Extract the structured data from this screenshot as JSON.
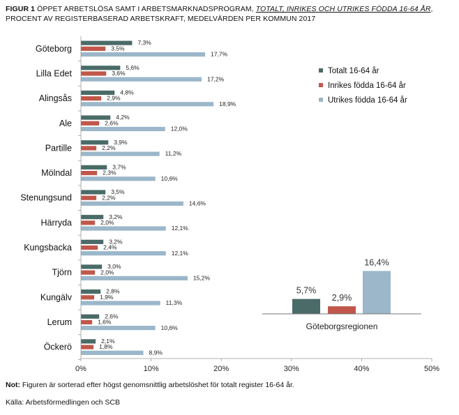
{
  "header": {
    "figure_label": "FIGUR 1",
    "title_plain": " ÖPPET ARBETSLÖSA SAMT I ARBETSMARKNADSPROGRAM, ",
    "title_italic": "TOTALT, INRIKES OCH UTRIKES FÖDDA 16-64 ÅR",
    "title_rest": ", PROCENT AV REGISTERBASERAD ARBETSKRAFT, MEDELVÄRDEN PER KOMMUN 2017"
  },
  "footer": {
    "note_label": "Not:",
    "note_text": " Figuren är sorterad efter högst genomsnittlig arbetslöshet för totalt register 16-64 år.",
    "source": "Källa: Arbetsförmedlingen och SCB"
  },
  "chart_data": [
    {
      "type": "bar",
      "orientation": "horizontal",
      "categories": [
        "Göteborg",
        "Lilla Edet",
        "Alingsås",
        "Ale",
        "Partille",
        "Mölndal",
        "Stenungsund",
        "Härryda",
        "Kungsbacka",
        "Tjörn",
        "Kungälv",
        "Lerum",
        "Öckerö"
      ],
      "series": [
        {
          "name": "Totalt 16-64 år",
          "color": "#4a6b68",
          "values": [
            7.3,
            5.6,
            4.8,
            4.2,
            3.9,
            3.7,
            3.5,
            3.2,
            3.2,
            3.0,
            2.8,
            2.6,
            2.1
          ],
          "labels": [
            "7,3%",
            "5,6%",
            "4,8%",
            "4,2%",
            "3,9%",
            "3,7%",
            "3,5%",
            "3,2%",
            "3,2%",
            "3,0%",
            "2,8%",
            "2,6%",
            "2,1%"
          ]
        },
        {
          "name": "Inrikes födda 16-64 år",
          "color": "#c0574a",
          "values": [
            3.5,
            3.6,
            2.9,
            2.6,
            2.2,
            2.3,
            2.2,
            2.0,
            2.4,
            2.0,
            1.9,
            1.6,
            1.8
          ],
          "labels": [
            "3,5%",
            "3,6%",
            "2,9%",
            "2,6%",
            "2,2%",
            "2,3%",
            "2,2%",
            "2,0%",
            "2,4%",
            "2,0%",
            "1,9%",
            "1,6%",
            "1,8%"
          ]
        },
        {
          "name": "Utrikes födda 16-64 år",
          "color": "#9bb7c9",
          "values": [
            17.7,
            17.2,
            18.9,
            12.0,
            11.2,
            10.6,
            14.6,
            12.1,
            12.1,
            15.2,
            11.3,
            10.6,
            8.9
          ],
          "labels": [
            "17,7%",
            "17,2%",
            "18,9%",
            "12,0%",
            "11,2%",
            "10,6%",
            "14,6%",
            "12,1%",
            "12,1%",
            "15,2%",
            "11,3%",
            "10,6%",
            "8,9%"
          ]
        }
      ],
      "xlim": [
        0,
        50
      ],
      "xticks": [
        "0%",
        "10%",
        "20%",
        "30%",
        "40%",
        "50%"
      ],
      "legend_position": "right"
    },
    {
      "type": "bar",
      "title": "Göteborgsregionen",
      "categories": [
        "Totalt 16-64 år",
        "Inrikes födda 16-64 år",
        "Utrikes födda 16-64 år"
      ],
      "values": [
        5.7,
        2.9,
        16.4
      ],
      "labels": [
        "5,7%",
        "2,9%",
        "16,4%"
      ],
      "colors": [
        "#4a6b68",
        "#c0574a",
        "#9bb7c9"
      ]
    }
  ]
}
